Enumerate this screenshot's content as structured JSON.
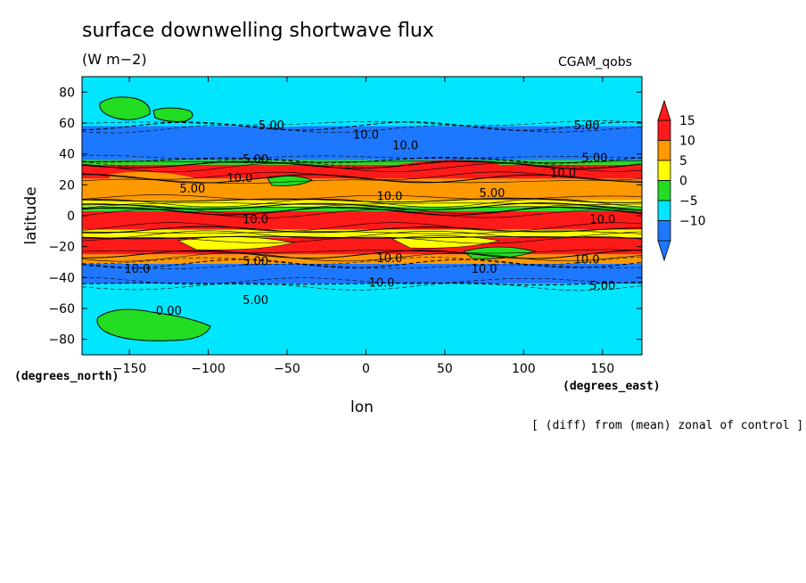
{
  "chart_data": {
    "type": "heatmap",
    "title": "surface downwelling shortwave flux",
    "units": "(W m−2)",
    "model": "CGAM_qobs",
    "xlabel": "lon",
    "ylabel": "latitude",
    "x_units": "(degrees_east)",
    "y_units": "(degrees_north)",
    "note": "[ (diff) from (mean) zonal of control ]",
    "xlim": [
      -180,
      175
    ],
    "ylim": [
      -90,
      90
    ],
    "x_ticks": [
      -150,
      -100,
      -50,
      0,
      50,
      100,
      150
    ],
    "y_ticks": [
      80,
      60,
      40,
      20,
      0,
      -20,
      -40,
      -60,
      -80
    ],
    "colorbar": {
      "levels": [
        -10,
        -5,
        0,
        5,
        10,
        15
      ],
      "colors": [
        "#1e78ff",
        "#00e6ff",
        "#22dd22",
        "#ffff00",
        "#ff9900",
        "#ff1a1a"
      ],
      "extend": "both"
    },
    "bands": [
      {
        "lat": [
          -90,
          -44
        ],
        "level": -5
      },
      {
        "lat": [
          -44,
          -31
        ],
        "level": -10
      },
      {
        "lat": [
          -31,
          -25
        ],
        "level": 10
      },
      {
        "lat": [
          -25,
          -14
        ],
        "level": 15
      },
      {
        "lat": [
          -14,
          -9
        ],
        "level": 5
      },
      {
        "lat": [
          -9,
          3
        ],
        "level": 15
      },
      {
        "lat": [
          3,
          6
        ],
        "level": 0
      },
      {
        "lat": [
          6,
          10
        ],
        "level": 5
      },
      {
        "lat": [
          10,
          24
        ],
        "level": 10
      },
      {
        "lat": [
          24,
          33
        ],
        "level": 15
      },
      {
        "lat": [
          33,
          36
        ],
        "level": 0
      },
      {
        "lat": [
          36,
          58
        ],
        "level": -10
      },
      {
        "lat": [
          58,
          90
        ],
        "level": -5
      }
    ],
    "contour_labels": [
      {
        "text": "5.00",
        "lon": -60,
        "lat": 56
      },
      {
        "text": "5.00",
        "lon": 140,
        "lat": 56
      },
      {
        "text": "10.0",
        "lon": 0,
        "lat": 50
      },
      {
        "text": "10.0",
        "lon": 25,
        "lat": 43
      },
      {
        "text": "5.00",
        "lon": -70,
        "lat": 34
      },
      {
        "text": "5.00",
        "lon": 145,
        "lat": 35
      },
      {
        "text": "5.00",
        "lon": -110,
        "lat": 15
      },
      {
        "text": "10.0",
        "lon": -80,
        "lat": 22
      },
      {
        "text": "10.0",
        "lon": 15,
        "lat": 10
      },
      {
        "text": "10.0",
        "lon": 125,
        "lat": 25
      },
      {
        "text": "5.00",
        "lon": 80,
        "lat": 12
      },
      {
        "text": "10.0",
        "lon": -70,
        "lat": -5
      },
      {
        "text": "10.0",
        "lon": 150,
        "lat": -5
      },
      {
        "text": "10.0",
        "lon": 15,
        "lat": -30
      },
      {
        "text": "5.00",
        "lon": -70,
        "lat": -32
      },
      {
        "text": "10.0",
        "lon": 75,
        "lat": -37
      },
      {
        "text": "10.0",
        "lon": -145,
        "lat": -37
      },
      {
        "text": "10.0",
        "lon": 140,
        "lat": -31
      },
      {
        "text": "10.0",
        "lon": 10,
        "lat": -46
      },
      {
        "text": "5.00",
        "lon": -70,
        "lat": -57
      },
      {
        "text": "5.00",
        "lon": 150,
        "lat": -48
      },
      {
        "text": "0.00",
        "lon": -125,
        "lat": -64
      }
    ]
  }
}
